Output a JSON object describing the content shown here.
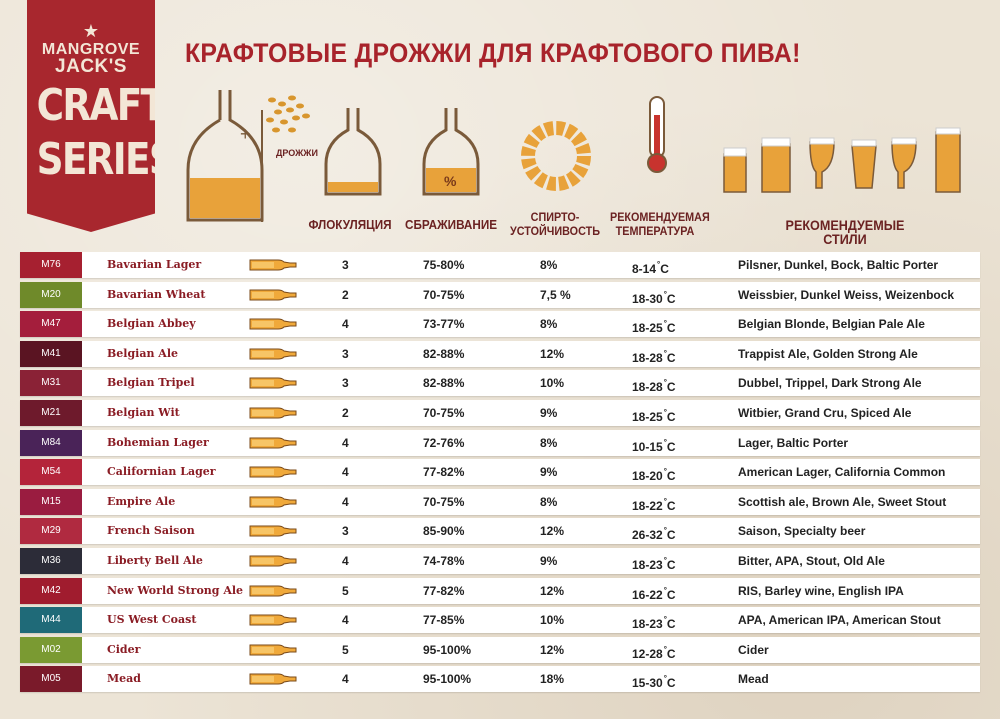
{
  "brand": {
    "line1": "MANGROVE",
    "line2": "JACK'S",
    "series1": "CRAFT",
    "series2": "SERIES"
  },
  "title": "КРАФТОВЫЕ ДРОЖЖИ ДЛЯ КРАФТОВОГО ПИВА!",
  "yeast_label": "ДРОЖЖИ",
  "headers": {
    "flocculation": "ФЛОКУЛЯЦИЯ",
    "attenuation": "СБРАЖИВАНИЕ",
    "alcohol_line1": "СПИРТО-",
    "alcohol_line2": "УСТОЙЧИВОСТЬ",
    "temp_line1": "РЕКОМЕНДУЕМАЯ",
    "temp_line2": "ТЕМПЕРАТУРА",
    "styles": "РЕКОМЕНДУЕМЫЕ СТИЛИ"
  },
  "rows": [
    {
      "code": "M76",
      "color": "#a62030",
      "name": "Bavarian Lager",
      "floc": "3",
      "att": "75-80%",
      "alc": "8%",
      "temp": "8-14",
      "deg": "°",
      "unit": "C",
      "styles": "Pilsner, Dunkel, Bock, Baltic Porter"
    },
    {
      "code": "M20",
      "color": "#6f8a2a",
      "name": "Bavarian Wheat",
      "floc": "2",
      "att": "70-75%",
      "alc": "7,5 %",
      "temp": "18-30",
      "deg": "°",
      "unit": "C",
      "styles": "Weissbier, Dunkel Weiss, Weizenbock"
    },
    {
      "code": "M47",
      "color": "#a41e3c",
      "name": "Belgian Abbey",
      "floc": "4",
      "att": "73-77%",
      "alc": "8%",
      "temp": "18-25",
      "deg": "°",
      "unit": "C",
      "styles": "Belgian Blonde, Belgian Pale Ale"
    },
    {
      "code": "M41",
      "color": "#5a1422",
      "name": "Belgian Ale",
      "floc": "3",
      "att": "82-88%",
      "alc": "12%",
      "temp": "18-28",
      "deg": "°",
      "unit": "C",
      "styles": "Trappist Ale, Golden Strong Ale"
    },
    {
      "code": "M31",
      "color": "#8a2236",
      "name": "Belgian Tripel",
      "floc": "3",
      "att": "82-88%",
      "alc": "10%",
      "temp": "18-28",
      "deg": "°",
      "unit": "C",
      "styles": "Dubbel, Trippel, Dark Strong Ale"
    },
    {
      "code": "M21",
      "color": "#6e1a2c",
      "name": "Belgian Wit",
      "floc": "2",
      "att": "70-75%",
      "alc": "9%",
      "temp": "18-25",
      "deg": "°",
      "unit": "C",
      "styles": "Witbier, Grand Cru, Spiced Ale"
    },
    {
      "code": "M84",
      "color": "#4a2358",
      "name": "Bohemian Lager",
      "floc": "4",
      "att": "72-76%",
      "alc": "8%",
      "temp": "10-15",
      "deg": "°",
      "unit": "C",
      "styles": "Lager, Baltic Porter"
    },
    {
      "code": "M54",
      "color": "#b4243a",
      "name": "Californian Lager",
      "floc": "4",
      "att": "77-82%",
      "alc": "9%",
      "temp": "18-20",
      "deg": "°",
      "unit": "C",
      "styles": "American Lager, California Common"
    },
    {
      "code": "M15",
      "color": "#9a1c40",
      "name": "Empire Ale",
      "floc": "4",
      "att": "70-75%",
      "alc": "8%",
      "temp": "18-22",
      "deg": "°",
      "unit": "C",
      "styles": "Scottish ale, Brown Ale, Sweet Stout"
    },
    {
      "code": "M29",
      "color": "#b02a40",
      "name": "French Saison",
      "floc": "3",
      "att": "85-90%",
      "alc": "12%",
      "temp": "26-32",
      "deg": "°",
      "unit": "C",
      "styles": "Saison, Specialty beer"
    },
    {
      "code": "M36",
      "color": "#2c2c38",
      "name": "Liberty Bell Ale",
      "floc": "4",
      "att": "74-78%",
      "alc": "9%",
      "temp": "18-23",
      "deg": "°",
      "unit": "C",
      "styles": "Bitter, APA, Stout, Old Ale"
    },
    {
      "code": "M42",
      "color": "#a01c2e",
      "name": "New World Strong Ale",
      "floc": "5",
      "att": "77-82%",
      "alc": "12%",
      "temp": "16-22",
      "deg": "°",
      "unit": "C",
      "styles": "RIS, Barley wine, English IPA"
    },
    {
      "code": "M44",
      "color": "#1f6a78",
      "name": "US West Coast",
      "floc": "4",
      "att": "77-85%",
      "alc": "10%",
      "temp": "18-23",
      "deg": "°",
      "unit": "C",
      "styles": "APA, American IPA, American Stout"
    },
    {
      "code": "M02",
      "color": "#7a9a32",
      "name": "Cider",
      "floc": "5",
      "att": "95-100%",
      "alc": "12%",
      "temp": "12-28",
      "deg": "°",
      "unit": "C",
      "styles": "Cider"
    },
    {
      "code": "M05",
      "color": "#7a1a2a",
      "name": "Mead",
      "floc": "4",
      "att": "95-100%",
      "alc": "18%",
      "temp": "15-30",
      "deg": "°",
      "unit": "C",
      "styles": "Mead"
    }
  ]
}
